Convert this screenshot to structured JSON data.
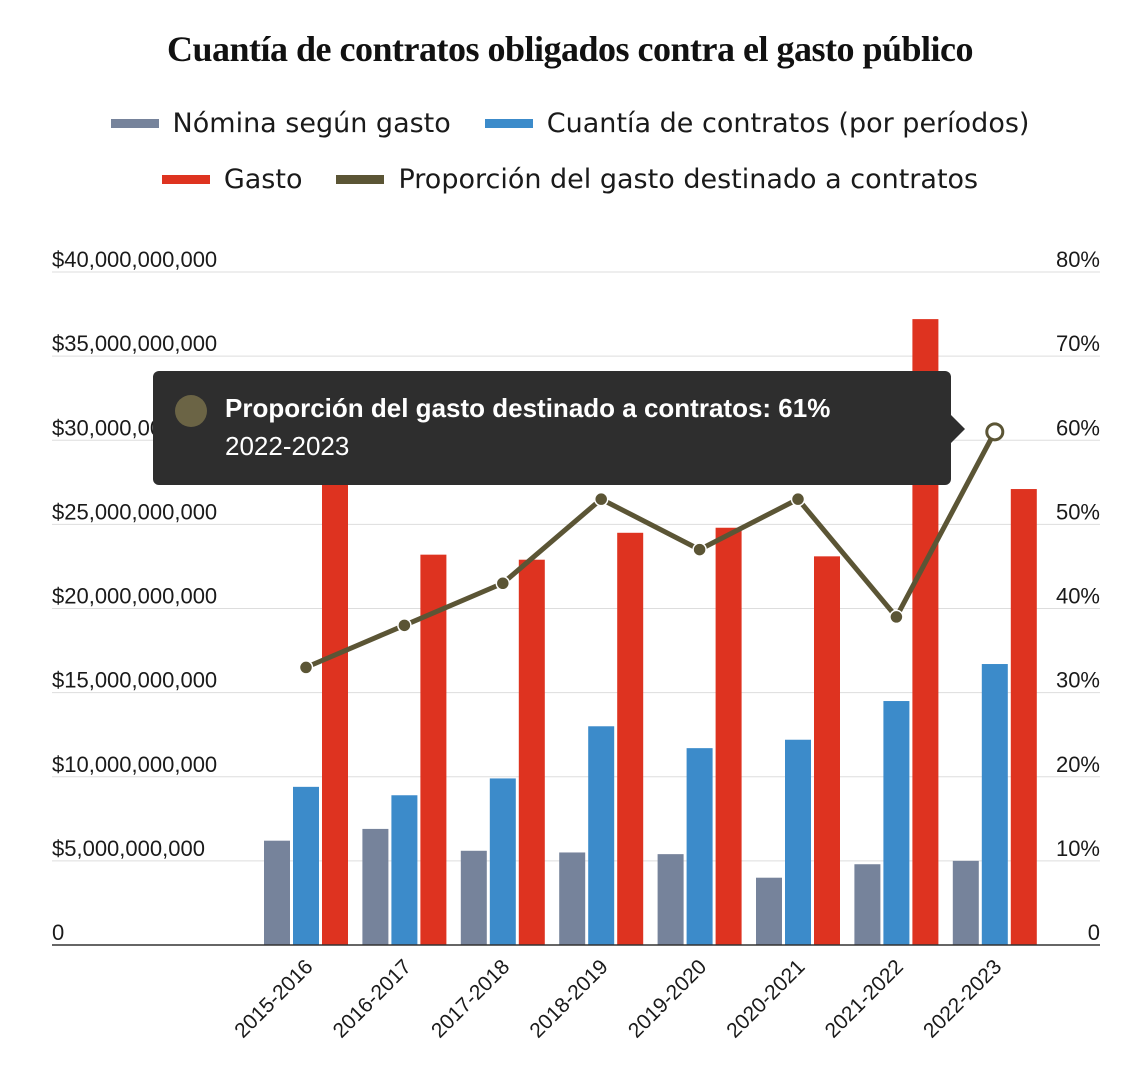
{
  "colors": {
    "nomina": "#76839b",
    "cuantia": "#3c8bca",
    "gasto": "#de3320",
    "proporcion": "#5b5535",
    "grid": "#dddddd",
    "axis": "#333333"
  },
  "chart_data": {
    "type": "bar",
    "title": "Cuantía de contratos obligados contra el gasto público",
    "categories": [
      "2015-2016",
      "2016-2017",
      "2017-2018",
      "2018-2019",
      "2019-2020",
      "2020-2021",
      "2021-2022",
      "2022-2023"
    ],
    "series": [
      {
        "name": "Nómina según gasto",
        "type": "bar",
        "axis": "left",
        "values": [
          6200000000,
          6900000000,
          5600000000,
          5500000000,
          5400000000,
          4000000000,
          4800000000,
          5000000000
        ]
      },
      {
        "name": "Cuantía de contratos (por períodos)",
        "type": "bar",
        "axis": "left",
        "values": [
          9400000000,
          8900000000,
          9900000000,
          13000000000,
          11700000000,
          12200000000,
          14500000000,
          16700000000
        ]
      },
      {
        "name": "Gasto",
        "type": "bar",
        "axis": "left",
        "values": [
          28000000000,
          23200000000,
          22900000000,
          24500000000,
          24800000000,
          23100000000,
          37200000000,
          27100000000
        ]
      },
      {
        "name": "Proporción del gasto destinado a contratos",
        "type": "line",
        "axis": "right",
        "values": [
          33,
          38,
          43,
          53,
          47,
          53,
          39,
          61
        ]
      }
    ],
    "y_left": {
      "ylim": [
        0,
        40000000000
      ],
      "ticks": [
        0,
        5000000000,
        10000000000,
        15000000000,
        20000000000,
        25000000000,
        30000000000,
        35000000000,
        40000000000
      ],
      "tick_labels": [
        "0",
        "$5,000,000,000",
        "$10,000,000,000",
        "$15,000,000,000",
        "$20,000,000,000",
        "$25,000,000,000",
        "$30,000,000,000",
        "$35,000,000,000",
        "$40,000,000,000"
      ]
    },
    "y_right": {
      "ylim": [
        0,
        80
      ],
      "ticks": [
        0,
        10,
        20,
        30,
        40,
        50,
        60,
        70,
        80
      ],
      "tick_labels": [
        "0",
        "10%",
        "20%",
        "30%",
        "40%",
        "50%",
        "60%",
        "70%",
        "80%"
      ]
    },
    "grid": true,
    "legend_position": "top-center"
  },
  "tooltip": {
    "label": "Proporción del gasto destinado a contratos: 61%",
    "category": "2022-2023",
    "active_index": 7
  }
}
